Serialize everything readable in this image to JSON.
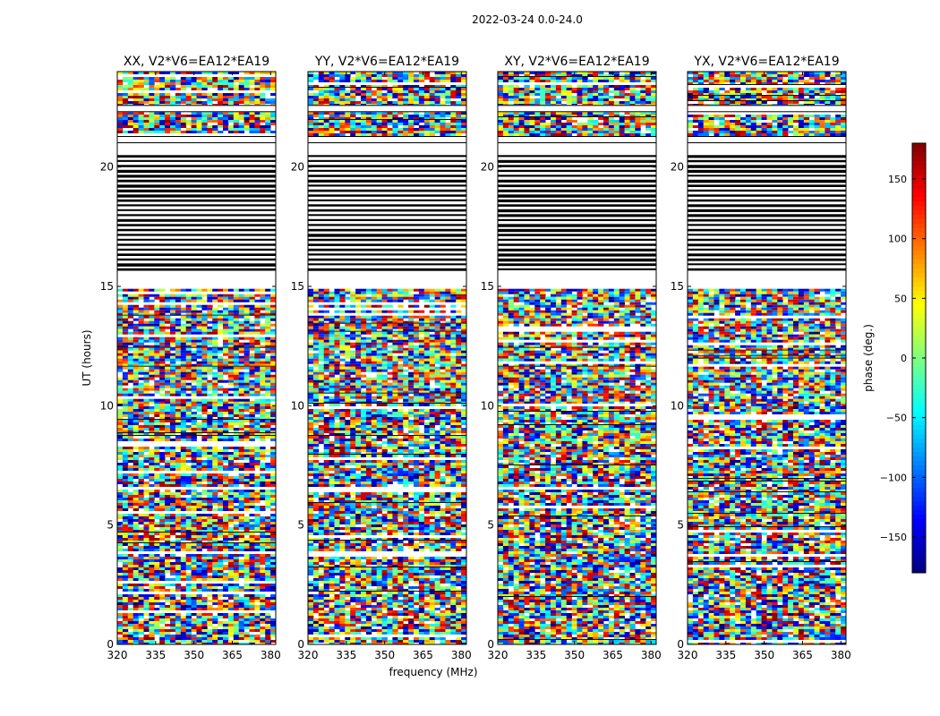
{
  "figure": {
    "suptitle": "2022-03-24 0.0-24.0",
    "xlabel": "frequency (MHz)",
    "ylabel": "UT (hours)"
  },
  "chart_data": {
    "type": "heatmap",
    "title": "2022-03-24 0.0-24.0",
    "xlabel": "frequency (MHz)",
    "ylabel": "UT (hours)",
    "xlim": [
      320,
      382
    ],
    "ylim": [
      0,
      24
    ],
    "xticks": [
      320,
      335,
      350,
      365,
      380
    ],
    "yticks": [
      0,
      5,
      10,
      15,
      20
    ],
    "grid": false,
    "panels": [
      {
        "title": "XX, V2*V6=EA12*EA19",
        "polarization": "XX"
      },
      {
        "title": "YY, V2*V6=EA12*EA19",
        "polarization": "YY"
      },
      {
        "title": "XY, V2*V6=EA12*EA19",
        "polarization": "XY"
      },
      {
        "title": "YX, V2*V6=EA12*EA19",
        "polarization": "YX"
      }
    ],
    "colorbar": {
      "label": "phase (deg.)",
      "range": [
        -180,
        180
      ],
      "ticks": [
        -150,
        -100,
        -50,
        0,
        50,
        100,
        150
      ],
      "colormap": "jet"
    },
    "flagged_hours": [
      [
        15.6,
        20.5
      ],
      [
        21.0,
        21.3
      ],
      [
        22.3,
        22.6
      ]
    ],
    "data_bands_hours": [
      [
        0.0,
        10.2
      ],
      [
        10.2,
        14.9
      ],
      [
        21.3,
        24.0
      ]
    ]
  }
}
